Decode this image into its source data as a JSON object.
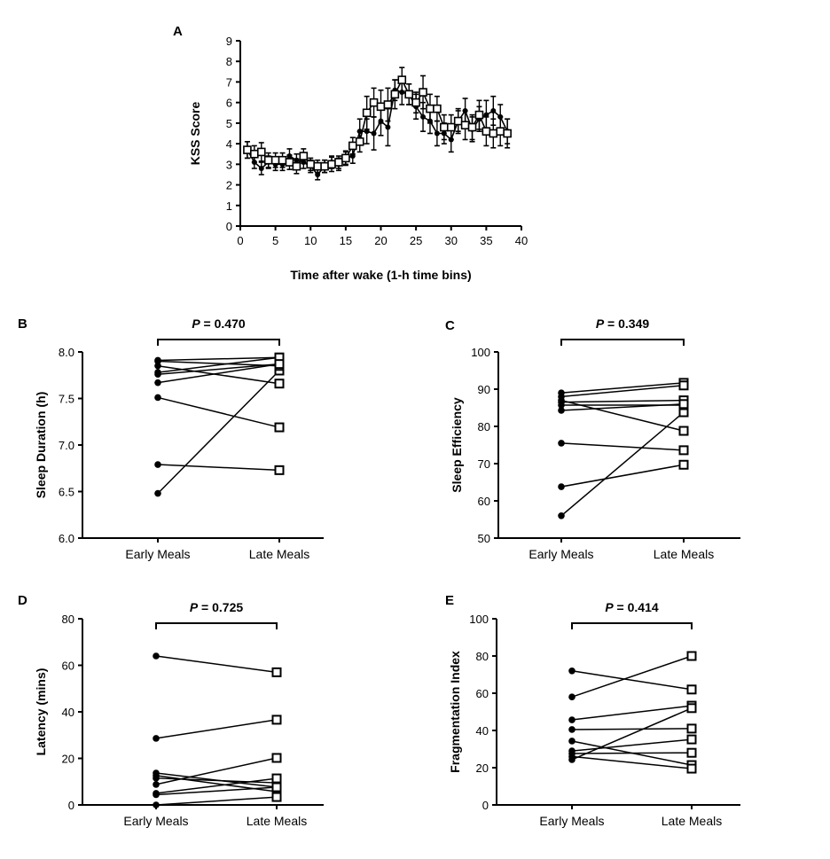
{
  "chart_data": [
    {
      "panel": "A",
      "type": "line",
      "xlabel": "Time after wake (1-h time bins)",
      "ylabel": "KSS Score",
      "xlim": [
        0,
        40
      ],
      "ylim": [
        0,
        9
      ],
      "xticks": [
        0,
        5,
        10,
        15,
        20,
        25,
        30,
        35,
        40
      ],
      "yticks": [
        0,
        1,
        2,
        3,
        4,
        5,
        6,
        7,
        8,
        9
      ],
      "grid": false,
      "x": [
        1,
        2,
        3,
        4,
        5,
        6,
        7,
        8,
        9,
        10,
        11,
        12,
        13,
        14,
        15,
        16,
        17,
        18,
        19,
        20,
        21,
        22,
        23,
        24,
        25,
        26,
        27,
        28,
        29,
        30,
        31,
        32,
        33,
        34,
        35,
        36,
        37,
        38
      ],
      "series": [
        {
          "marker": "filled-circle",
          "values": [
            3.7,
            3.1,
            2.8,
            3.1,
            3.0,
            3.0,
            3.4,
            3.2,
            3.1,
            2.9,
            2.5,
            2.9,
            3.1,
            3.0,
            3.3,
            3.4,
            4.6,
            4.6,
            4.5,
            5.1,
            4.8,
            6.6,
            6.5,
            6.4,
            5.8,
            5.3,
            5.1,
            4.5,
            4.5,
            4.2,
            5.1,
            5.6,
            4.7,
            5.2,
            5.4,
            5.6,
            5.3,
            4.6
          ],
          "error": [
            0.4,
            0.3,
            0.3,
            0.3,
            0.3,
            0.3,
            0.35,
            0.3,
            0.3,
            0.3,
            0.25,
            0.3,
            0.3,
            0.3,
            0.3,
            0.35,
            0.6,
            0.6,
            0.8,
            0.7,
            0.9,
            0.5,
            0.6,
            0.5,
            0.6,
            0.7,
            0.6,
            0.6,
            0.5,
            0.6,
            0.5,
            0.6,
            0.6,
            0.6,
            0.7,
            0.7,
            0.6,
            0.6
          ]
        },
        {
          "marker": "open-square",
          "values": [
            3.7,
            3.5,
            3.6,
            3.2,
            3.2,
            3.2,
            3.1,
            2.9,
            3.4,
            3.0,
            2.9,
            2.9,
            3.0,
            3.1,
            3.3,
            3.9,
            4.1,
            5.5,
            6.0,
            5.8,
            5.9,
            6.4,
            7.1,
            6.4,
            6.0,
            6.5,
            5.7,
            5.7,
            4.8,
            4.8,
            5.1,
            4.9,
            4.8,
            5.4,
            4.6,
            4.5,
            4.6,
            4.5
          ],
          "error": [
            0.4,
            0.4,
            0.45,
            0.35,
            0.35,
            0.35,
            0.35,
            0.35,
            0.35,
            0.3,
            0.3,
            0.3,
            0.35,
            0.3,
            0.35,
            0.4,
            0.5,
            0.8,
            0.7,
            0.8,
            0.8,
            0.7,
            0.6,
            0.5,
            0.5,
            0.8,
            0.7,
            0.6,
            0.6,
            0.6,
            0.6,
            0.7,
            0.6,
            0.7,
            0.7,
            0.7,
            0.7,
            0.7
          ]
        }
      ]
    },
    {
      "panel": "B",
      "type": "scatter",
      "categories": [
        "Early Meals",
        "Late Meals"
      ],
      "ylabel": "Sleep Duration (h)",
      "ylim": [
        6.0,
        8.0
      ],
      "yticks": [
        "6.0",
        "6.5",
        "7.0",
        "7.5",
        "8.0"
      ],
      "ytick_values": [
        6.0,
        6.5,
        7.0,
        7.5,
        8.0
      ],
      "p_label": "P",
      "p_value": "= 0.470",
      "pairs": [
        [
          6.48,
          7.8
        ],
        [
          6.79,
          6.73
        ],
        [
          7.51,
          7.19
        ],
        [
          7.67,
          7.87
        ],
        [
          7.78,
          7.94
        ],
        [
          7.85,
          7.66
        ],
        [
          7.91,
          7.94
        ],
        [
          7.9,
          7.85
        ],
        [
          7.76,
          7.87
        ]
      ]
    },
    {
      "panel": "C",
      "type": "scatter",
      "categories": [
        "Early Meals",
        "Late Meals"
      ],
      "ylabel": "Sleep Efficiency",
      "ylim": [
        50,
        100
      ],
      "yticks": [
        "50",
        "60",
        "70",
        "80",
        "90",
        "100"
      ],
      "ytick_values": [
        50,
        60,
        70,
        80,
        90,
        100
      ],
      "p_label": "P",
      "p_value": "= 0.349",
      "pairs": [
        [
          56,
          83.8
        ],
        [
          63.8,
          69.7
        ],
        [
          75.5,
          73.6
        ],
        [
          87,
          78.8
        ],
        [
          89,
          91.7
        ],
        [
          88,
          91
        ],
        [
          86.5,
          87
        ],
        [
          85.7,
          85.7
        ],
        [
          84.3,
          86
        ]
      ]
    },
    {
      "panel": "D",
      "type": "scatter",
      "categories": [
        "Early Meals",
        "Late Meals"
      ],
      "ylabel": "Latency (mins)",
      "ylim": [
        0,
        80
      ],
      "yticks": [
        "0",
        "20",
        "40",
        "60",
        "80"
      ],
      "ytick_values": [
        0,
        20,
        40,
        60,
        80
      ],
      "p_label": "P",
      "p_value": "= 0.725",
      "pairs": [
        [
          64,
          57
        ],
        [
          28.6,
          36.6
        ],
        [
          8.8,
          20.2
        ],
        [
          13.7,
          7.6
        ],
        [
          12.6,
          5.7
        ],
        [
          11.5,
          9.5
        ],
        [
          5,
          11.4
        ],
        [
          4.4,
          7.6
        ],
        [
          0,
          3.4
        ]
      ]
    },
    {
      "panel": "E",
      "type": "scatter",
      "categories": [
        "Early Meals",
        "Late Meals"
      ],
      "ylabel": "Fragmentation Index",
      "ylim": [
        0,
        100
      ],
      "yticks": [
        "0",
        "20",
        "40",
        "60",
        "80",
        "100"
      ],
      "ytick_values": [
        0,
        20,
        40,
        60,
        80,
        100
      ],
      "p_label": "P",
      "p_value": "= 0.414",
      "pairs": [
        [
          72,
          62
        ],
        [
          58,
          80
        ],
        [
          45.7,
          53.3
        ],
        [
          40.5,
          41
        ],
        [
          34.3,
          21.4
        ],
        [
          29,
          35.2
        ],
        [
          27.6,
          28
        ],
        [
          26,
          19.5
        ],
        [
          24.3,
          52
        ]
      ]
    }
  ]
}
